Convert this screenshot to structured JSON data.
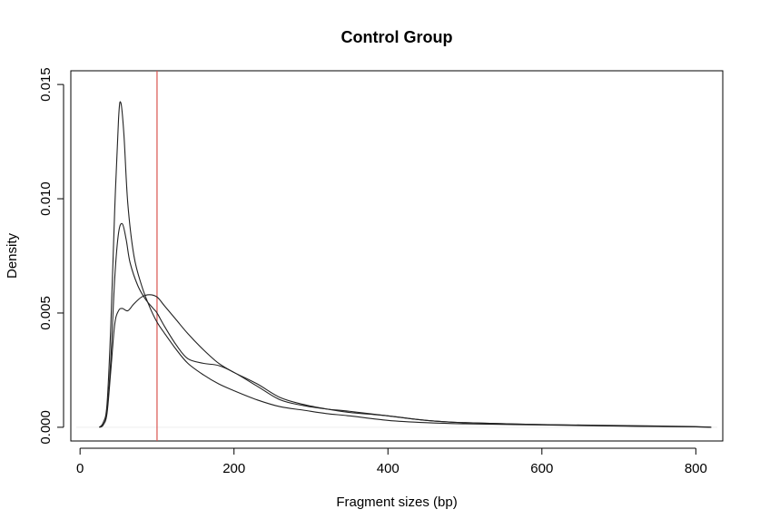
{
  "chart_data": {
    "type": "line",
    "title": "Control Group",
    "xlabel": "Fragment sizes (bp)",
    "ylabel": "Density",
    "xlim": [
      -12,
      835
    ],
    "ylim": [
      -0.0006,
      0.0156
    ],
    "xticks": [
      0,
      200,
      400,
      600,
      800
    ],
    "xtick_labels": [
      "0",
      "200",
      "400",
      "600",
      "800"
    ],
    "yticks": [
      0.0,
      0.005,
      0.01,
      0.015
    ],
    "ytick_labels": [
      "0.000",
      "0.005",
      "0.010",
      "0.015"
    ],
    "grid": false,
    "reference_line": {
      "x": 100,
      "color": "#d9534f"
    },
    "baseline": {
      "y": 0,
      "color": "#eeeeee"
    },
    "line_color": "#222222",
    "series": [
      {
        "x": [
          25,
          30,
          35,
          40,
          45,
          50,
          53,
          57,
          62,
          70,
          80,
          90,
          100,
          110,
          125,
          140,
          160,
          180,
          200,
          230,
          260,
          290,
          320,
          350,
          400,
          450,
          500,
          600,
          700,
          800,
          820
        ],
        "values": [
          0.0,
          0.0002,
          0.001,
          0.0045,
          0.0095,
          0.0135,
          0.0142,
          0.0128,
          0.0098,
          0.0075,
          0.0062,
          0.0053,
          0.0046,
          0.0041,
          0.0034,
          0.0028,
          0.0023,
          0.0019,
          0.0016,
          0.0012,
          0.0009,
          0.00075,
          0.0006,
          0.0005,
          0.0003,
          0.0002,
          0.00015,
          0.0001,
          5e-05,
          2e-05,
          0.0
        ]
      },
      {
        "x": [
          25,
          30,
          35,
          40,
          45,
          50,
          55,
          60,
          65,
          75,
          85,
          95,
          100,
          110,
          125,
          140,
          160,
          180,
          200,
          230,
          260,
          290,
          320,
          350,
          400,
          450,
          500,
          600,
          700,
          800,
          820
        ],
        "values": [
          0.0,
          0.0001,
          0.0007,
          0.003,
          0.0065,
          0.0085,
          0.0089,
          0.0082,
          0.0072,
          0.0062,
          0.0056,
          0.0052,
          0.005,
          0.0044,
          0.0036,
          0.003,
          0.0028,
          0.0027,
          0.0024,
          0.0018,
          0.0012,
          0.00095,
          0.0008,
          0.0007,
          0.0005,
          0.0003,
          0.0002,
          0.00012,
          8e-05,
          3e-05,
          0.0
        ]
      },
      {
        "x": [
          25,
          30,
          35,
          40,
          45,
          50,
          55,
          62,
          70,
          80,
          90,
          100,
          110,
          125,
          140,
          160,
          180,
          200,
          230,
          260,
          290,
          320,
          350,
          400,
          450,
          500,
          600,
          700,
          800,
          820
        ],
        "values": [
          0.0,
          0.0001,
          0.0006,
          0.0025,
          0.0045,
          0.0051,
          0.0052,
          0.0051,
          0.0054,
          0.0057,
          0.0058,
          0.0057,
          0.0053,
          0.0047,
          0.0041,
          0.0034,
          0.0028,
          0.0024,
          0.0019,
          0.0013,
          0.001,
          0.0008,
          0.00065,
          0.0005,
          0.0003,
          0.0002,
          0.00012,
          6e-05,
          2e-05,
          0.0
        ]
      }
    ]
  }
}
